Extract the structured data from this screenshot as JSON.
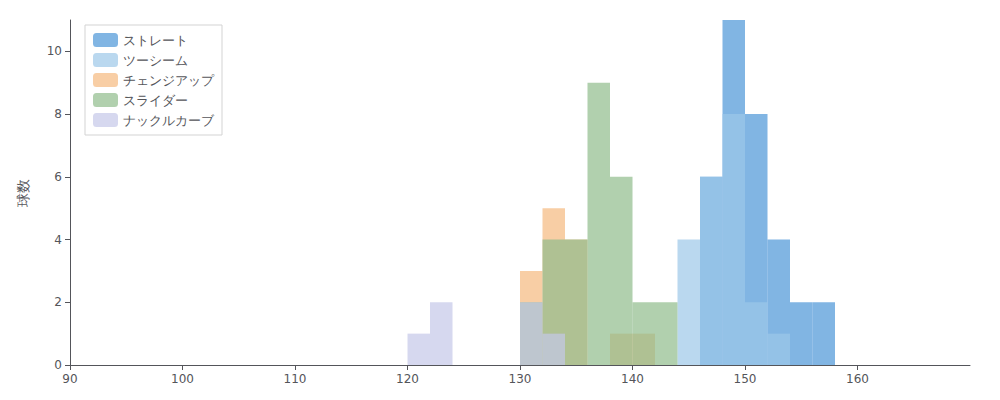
{
  "chart_data": {
    "type": "histogram",
    "ylabel": "球数",
    "bins": [
      90,
      92,
      94,
      96,
      98,
      100,
      102,
      104,
      106,
      108,
      110,
      112,
      114,
      116,
      118,
      120,
      122,
      124,
      126,
      128,
      130,
      132,
      134,
      136,
      138,
      140,
      142,
      144,
      146,
      148,
      150,
      152,
      154,
      156,
      158,
      160,
      162,
      164,
      166,
      168,
      170
    ],
    "series": [
      {
        "name": "ストレート",
        "color": "#4C96D7",
        "values": [
          0,
          0,
          0,
          0,
          0,
          0,
          0,
          0,
          0,
          0,
          0,
          0,
          0,
          0,
          0,
          0,
          0,
          0,
          0,
          0,
          0,
          0,
          0,
          0,
          0,
          0,
          0,
          0,
          6,
          11,
          8,
          4,
          2,
          2,
          0,
          0,
          0,
          0,
          0,
          0
        ]
      },
      {
        "name": "ツーシーム",
        "color": "#9DC8E8",
        "values": [
          0,
          0,
          0,
          0,
          0,
          0,
          0,
          0,
          0,
          0,
          0,
          0,
          0,
          0,
          0,
          0,
          0,
          0,
          0,
          0,
          0,
          0,
          0,
          0,
          0,
          0,
          0,
          4,
          6,
          8,
          2,
          1,
          0,
          0,
          0,
          0,
          0,
          0,
          0,
          0
        ]
      },
      {
        "name": "チェンジアップ",
        "color": "#F5B97F",
        "values": [
          0,
          0,
          0,
          0,
          0,
          0,
          0,
          0,
          0,
          0,
          0,
          0,
          0,
          0,
          0,
          0,
          0,
          0,
          0,
          0,
          3,
          5,
          4,
          0,
          1,
          1,
          0,
          0,
          0,
          0,
          0,
          0,
          0,
          0,
          0,
          0,
          0,
          0,
          0,
          0
        ]
      },
      {
        "name": "スライダー",
        "color": "#90BC8C",
        "values": [
          0,
          0,
          0,
          0,
          0,
          0,
          0,
          0,
          0,
          0,
          0,
          0,
          0,
          0,
          0,
          0,
          0,
          0,
          0,
          0,
          2,
          4,
          4,
          9,
          6,
          2,
          2,
          0,
          0,
          0,
          0,
          0,
          0,
          0,
          0,
          0,
          0,
          0,
          0,
          0
        ]
      },
      {
        "name": "ナックルカーブ",
        "color": "#C5C8E8",
        "values": [
          0,
          0,
          0,
          0,
          0,
          0,
          0,
          0,
          0,
          0,
          0,
          0,
          0,
          0,
          0,
          1,
          2,
          0,
          0,
          0,
          2,
          1,
          0,
          0,
          0,
          0,
          0,
          0,
          0,
          0,
          0,
          0,
          0,
          0,
          0,
          0,
          0,
          0,
          0,
          0
        ]
      }
    ],
    "xlim": [
      90,
      170
    ],
    "ylim": [
      0,
      11
    ],
    "xticks": [
      90,
      100,
      110,
      120,
      130,
      140,
      150,
      160
    ],
    "yticks": [
      0,
      2,
      4,
      6,
      8,
      10
    ],
    "grid": false,
    "legend": "upper left"
  }
}
